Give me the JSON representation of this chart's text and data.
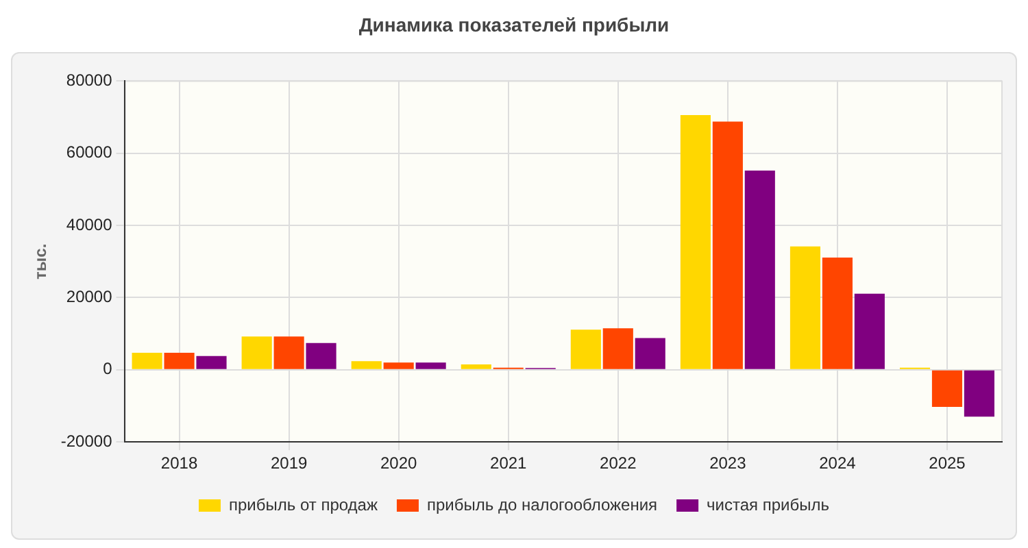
{
  "chart_data": {
    "type": "bar",
    "title": "Динамика показателей прибыли",
    "ylabel": "тыс.",
    "categories": [
      "2018",
      "2019",
      "2020",
      "2021",
      "2022",
      "2023",
      "2024",
      "2025"
    ],
    "series": [
      {
        "name": "прибыль от продаж",
        "color": "#ffd700",
        "values": [
          4700,
          9200,
          2400,
          1500,
          11100,
          70600,
          34200,
          600
        ]
      },
      {
        "name": "прибыль до налогообложения",
        "color": "#ff4500",
        "values": [
          4700,
          9200,
          2000,
          600,
          11500,
          68800,
          31100,
          -10300
        ]
      },
      {
        "name": "чистая прибыль",
        "color": "#800080",
        "values": [
          3800,
          7400,
          2000,
          500,
          8800,
          55200,
          21100,
          -13000
        ]
      }
    ],
    "ylim": [
      -20000,
      80000
    ],
    "yticks": [
      -20000,
      0,
      20000,
      40000,
      60000,
      80000
    ],
    "grid": true,
    "legend": "bottom"
  }
}
